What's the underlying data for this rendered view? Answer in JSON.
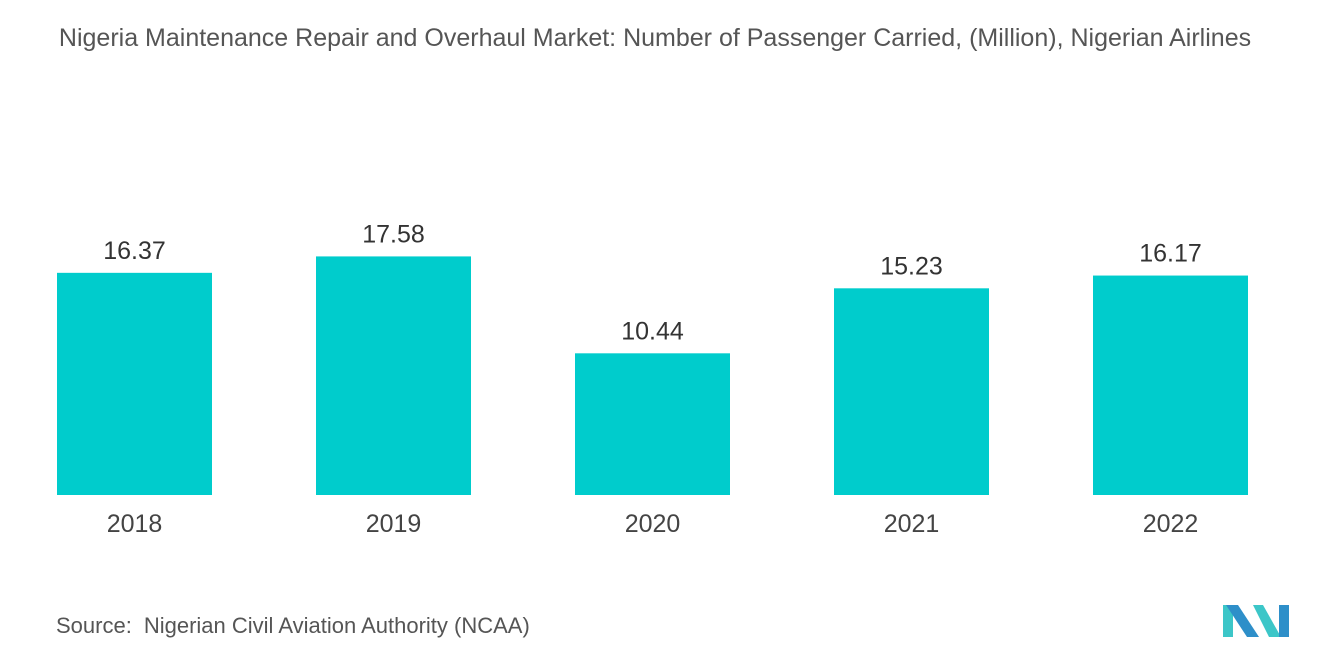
{
  "chart_data": {
    "type": "bar",
    "title": "Nigeria Maintenance Repair and Overhaul Market: Number of Passenger Carried, (Million), Nigerian Airlines",
    "categories": [
      "2018",
      "2019",
      "2020",
      "2021",
      "2022"
    ],
    "values": [
      16.37,
      17.58,
      10.44,
      15.23,
      16.17
    ],
    "data_labels": [
      "16.37",
      "17.58",
      "10.44",
      "15.23",
      "16.17"
    ],
    "xlabel": "",
    "ylabel": "",
    "ylim": [
      0,
      21
    ],
    "grid": false,
    "y_axis_visible": false,
    "bar_color": "#00CCCC"
  },
  "source": {
    "label": "Source:",
    "text": "Nigerian Civil Aviation Authority (NCAA)"
  },
  "logo": {
    "text": "MN",
    "colors": [
      "#2E8FC9",
      "#3CC6C8"
    ]
  }
}
